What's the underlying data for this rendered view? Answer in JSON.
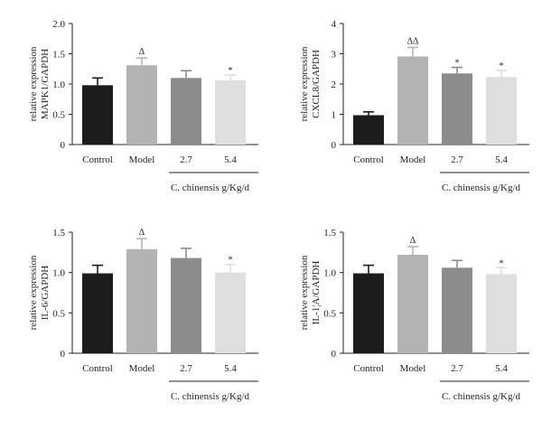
{
  "chart_data": [
    {
      "type": "bar",
      "ylabel": [
        "relative expression",
        "MAPK1/GAPDH"
      ],
      "ylim": [
        0,
        2.0
      ],
      "yticks": [
        "0",
        "0.5",
        "1.0",
        "1.5",
        "2.0"
      ],
      "categories": [
        "Control",
        "Model",
        "2.7",
        "5.4"
      ],
      "values": [
        0.98,
        1.31,
        1.1,
        1.06
      ],
      "errors": [
        0.12,
        0.12,
        0.12,
        0.09
      ],
      "annotations": [
        "",
        "Δ",
        "",
        "*"
      ],
      "group_label": "C. chinensis g/Kg/d",
      "colors": [
        "#1c1c1c",
        "#b3b3b3",
        "#8c8c8c",
        "#dedede"
      ]
    },
    {
      "type": "bar",
      "ylabel": [
        "relative expression",
        "CXCL8/GAPDH"
      ],
      "ylim": [
        0,
        4
      ],
      "yticks": [
        "0",
        "1",
        "2",
        "3",
        "4"
      ],
      "categories": [
        "Control",
        "Model",
        "2.7",
        "5.4"
      ],
      "values": [
        0.97,
        2.91,
        2.35,
        2.23
      ],
      "errors": [
        0.11,
        0.3,
        0.2,
        0.22
      ],
      "annotations": [
        "",
        "ΔΔ",
        "*",
        "*"
      ],
      "group_label": "C. chinensis g/Kg/d",
      "colors": [
        "#1c1c1c",
        "#b3b3b3",
        "#8c8c8c",
        "#dedede"
      ]
    },
    {
      "type": "bar",
      "ylabel": [
        "relative expression",
        "IL-6/GAPDH"
      ],
      "ylim": [
        0,
        1.5
      ],
      "yticks": [
        "0",
        "0.5",
        "1.0",
        "1.5"
      ],
      "categories": [
        "Control",
        "Model",
        "2.7",
        "5.4"
      ],
      "values": [
        0.99,
        1.29,
        1.18,
        1.0
      ],
      "errors": [
        0.1,
        0.13,
        0.12,
        0.1
      ],
      "annotations": [
        "",
        "Δ",
        "",
        "*"
      ],
      "group_label": "C. chinensis g/Kg/d",
      "colors": [
        "#1c1c1c",
        "#b3b3b3",
        "#8c8c8c",
        "#dedede"
      ]
    },
    {
      "type": "bar",
      "ylabel": [
        "relative expression",
        "IL-1¦A/GAPDH"
      ],
      "ylim": [
        0,
        1.5
      ],
      "yticks": [
        "0",
        "0.5",
        "1.0",
        "1.5"
      ],
      "categories": [
        "Control",
        "Model",
        "2.7",
        "5.4"
      ],
      "values": [
        0.99,
        1.22,
        1.06,
        0.98
      ],
      "errors": [
        0.1,
        0.1,
        0.09,
        0.08
      ],
      "annotations": [
        "",
        "Δ",
        "",
        "*"
      ],
      "group_label": "C. chinensis g/Kg/d",
      "colors": [
        "#1c1c1c",
        "#b3b3b3",
        "#8c8c8c",
        "#dedede"
      ]
    }
  ]
}
